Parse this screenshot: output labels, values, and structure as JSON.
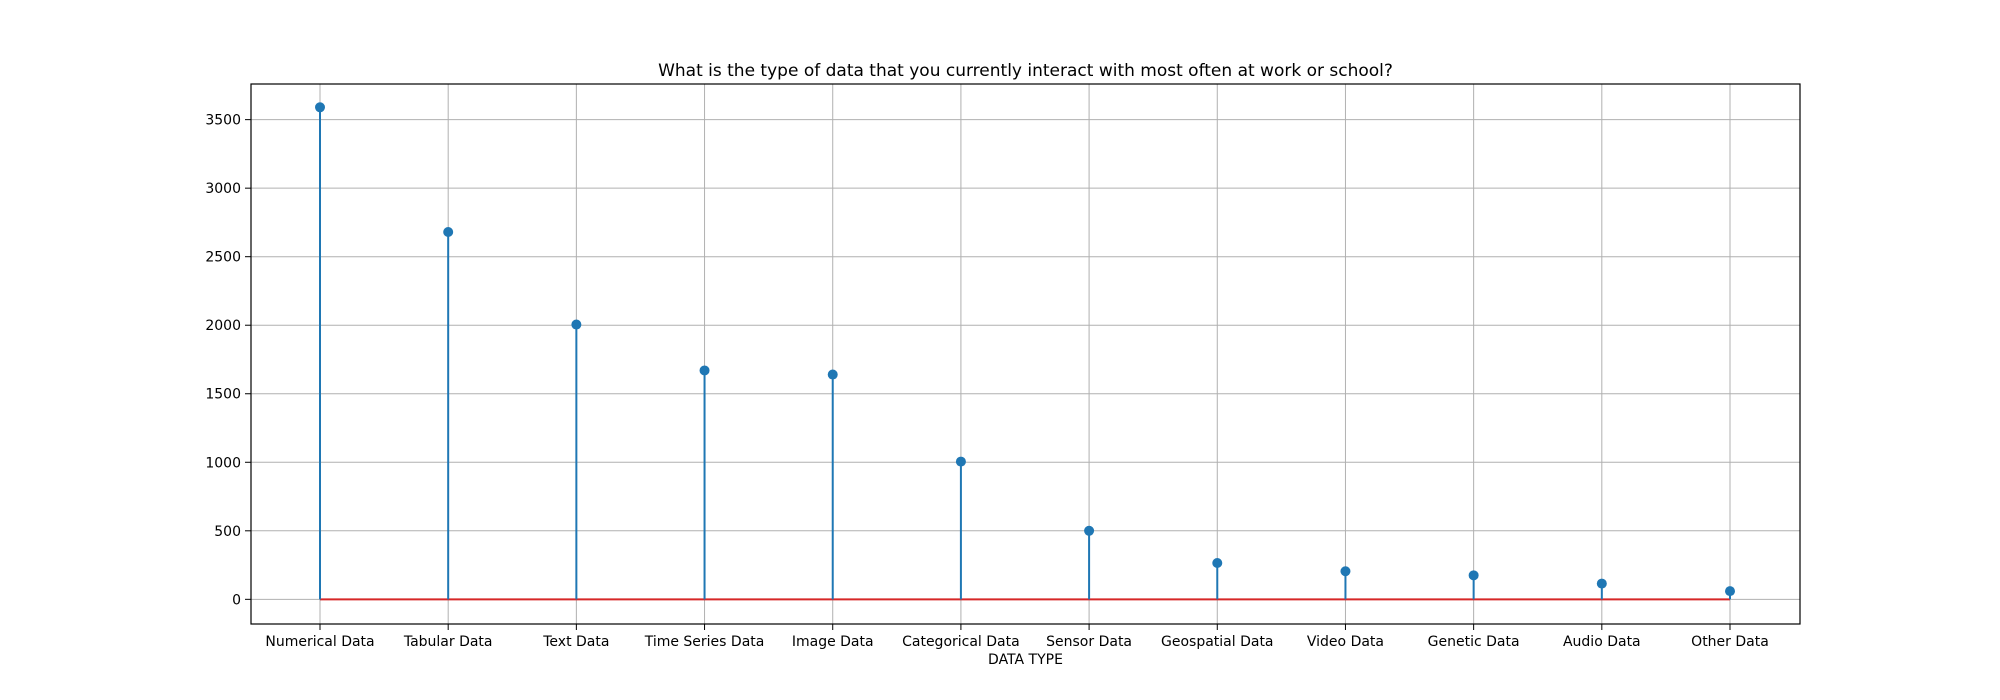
{
  "chart_data": {
    "type": "stem",
    "title": "What is the type of data that you currently interact with most often at work or school?",
    "xlabel": "DATA TYPE",
    "ylabel": "",
    "categories": [
      "Numerical Data",
      "Tabular Data",
      "Text Data",
      "Time Series Data",
      "Image Data",
      "Categorical Data",
      "Sensor Data",
      "Geospatial Data",
      "Video Data",
      "Genetic Data",
      "Audio Data",
      "Other Data"
    ],
    "values": [
      3590,
      2680,
      2005,
      1670,
      1640,
      1005,
      500,
      265,
      205,
      175,
      115,
      60
    ],
    "ylim": [
      -180,
      3760
    ],
    "yticks": [
      0,
      500,
      1000,
      1500,
      2000,
      2500,
      3000,
      3500
    ],
    "baseline": 0,
    "grid": true,
    "colors": {
      "stem": "#1f77b4",
      "baseline": "#d62728",
      "grid": "#b0b0b0",
      "axes": "#000000"
    }
  }
}
